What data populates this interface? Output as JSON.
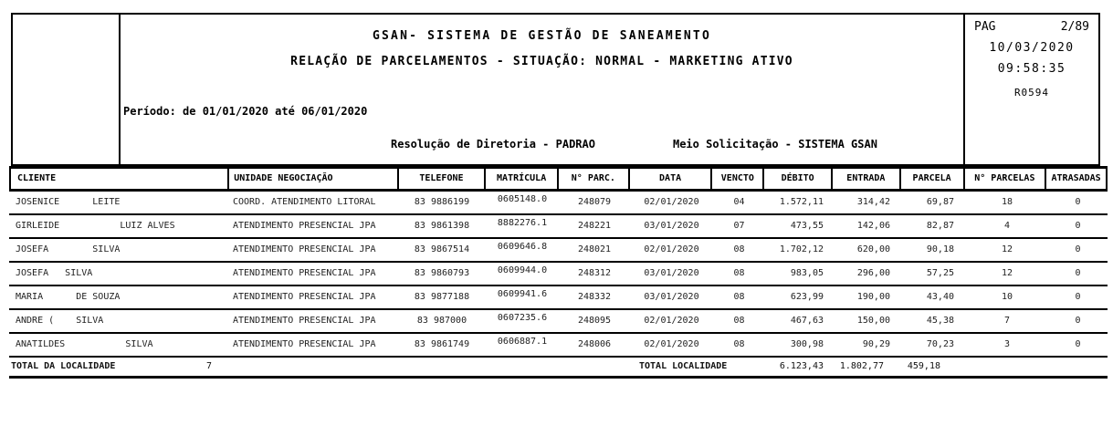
{
  "header": {
    "title": "GSAN- SISTEMA DE GESTÃO DE SANEAMENTO",
    "subtitle": "RELAÇÃO DE PARCELAMENTOS - SITUAÇÃO: NORMAL - MARKETING ATIVO",
    "period": "Período: de 01/01/2020 até 06/01/2020",
    "resolution": "Resolução de Diretoria - PADRAO",
    "solicitation": "Meio Solicitação - SISTEMA GSAN",
    "page_label": "PAG",
    "page_value": "2/89",
    "date": "10/03/2020",
    "time": "09:58:35",
    "report_code": "R0594"
  },
  "table": {
    "columns": [
      "CLIENTE",
      "UNIDADE NEGOCIAÇÃO",
      "TELEFONE",
      "MATRÍCULA",
      "N° PARC.",
      "DATA",
      "VENCTO",
      "DÉBITO",
      "ENTRADA",
      "PARCELA",
      "N° PARCELAS",
      "ATRASADAS"
    ],
    "rows": [
      {
        "cliente": "JOSENICE      LEITE",
        "unidade": "COORD. ATENDIMENTO LITORAL",
        "telefone": "83 9886199",
        "matricula": "0605148.0",
        "n_parc": "248079",
        "data": "02/01/2020",
        "vencto": "04",
        "debito": "1.572,11",
        "entrada": "314,42",
        "parcela": "69,87",
        "n_parcelas": "18",
        "atrasadas": "0"
      },
      {
        "cliente": "GIRLEIDE           LUIZ ALVES",
        "unidade": "ATENDIMENTO PRESENCIAL JPA",
        "telefone": "83 9861398",
        "matricula": "8882276.1",
        "n_parc": "248221",
        "data": "03/01/2020",
        "vencto": "07",
        "debito": "473,55",
        "entrada": "142,06",
        "parcela": "82,87",
        "n_parcelas": "4",
        "atrasadas": "0"
      },
      {
        "cliente": "JOSEFA        SILVA",
        "unidade": "ATENDIMENTO PRESENCIAL JPA",
        "telefone": "83 9867514",
        "matricula": "0609646.8",
        "n_parc": "248021",
        "data": "02/01/2020",
        "vencto": "08",
        "debito": "1.702,12",
        "entrada": "620,00",
        "parcela": "90,18",
        "n_parcelas": "12",
        "atrasadas": "0"
      },
      {
        "cliente": "JOSEFA   SILVA",
        "unidade": "ATENDIMENTO PRESENCIAL JPA",
        "telefone": "83 9860793",
        "matricula": "0609944.0",
        "n_parc": "248312",
        "data": "03/01/2020",
        "vencto": "08",
        "debito": "983,05",
        "entrada": "296,00",
        "parcela": "57,25",
        "n_parcelas": "12",
        "atrasadas": "0"
      },
      {
        "cliente": "MARIA      DE SOUZA",
        "unidade": "ATENDIMENTO PRESENCIAL JPA",
        "telefone": "83 9877188",
        "matricula": "0609941.6",
        "n_parc": "248332",
        "data": "03/01/2020",
        "vencto": "08",
        "debito": "623,99",
        "entrada": "190,00",
        "parcela": "43,40",
        "n_parcelas": "10",
        "atrasadas": "0"
      },
      {
        "cliente": "ANDRE (    SILVA",
        "unidade": "ATENDIMENTO PRESENCIAL JPA",
        "telefone": "83 987000",
        "matricula": "0607235.6",
        "n_parc": "248095",
        "data": "02/01/2020",
        "vencto": "08",
        "debito": "467,63",
        "entrada": "150,00",
        "parcela": "45,38",
        "n_parcelas": "7",
        "atrasadas": "0"
      },
      {
        "cliente": "ANATILDES           SILVA",
        "unidade": "ATENDIMENTO PRESENCIAL JPA",
        "telefone": "83 9861749",
        "matricula": "0606887.1",
        "n_parc": "248006",
        "data": "02/01/2020",
        "vencto": "08",
        "debito": "300,98",
        "entrada": "90,29",
        "parcela": "70,23",
        "n_parcelas": "3",
        "atrasadas": "0"
      }
    ],
    "total": {
      "label": "TOTAL DA LOCALIDADE",
      "count": "7",
      "caption": "TOTAL LOCALIDADE",
      "debito": "6.123,43",
      "entrada": "1.802,77",
      "parcela": "459,18"
    }
  }
}
